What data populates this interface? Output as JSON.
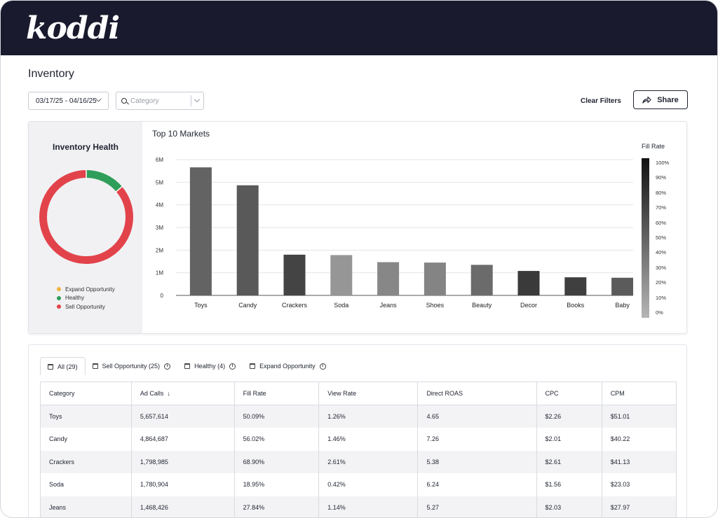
{
  "app": {
    "logo_text": "koddi"
  },
  "page": {
    "title": "Inventory"
  },
  "filters": {
    "date_range": "03/17/25 - 04/16/25",
    "category_placeholder": "Category",
    "clear_filters": "Clear Filters",
    "share": "Share"
  },
  "health": {
    "title": "Inventory Health",
    "legend": [
      {
        "label": "Expand Opportunity",
        "color": "#efb23f"
      },
      {
        "label": "Healthy",
        "color": "#2f9e5a"
      },
      {
        "label": "Sell Opportunity",
        "color": "#e2434b"
      }
    ],
    "segments": [
      {
        "label": "Healthy",
        "fraction": 0.138,
        "color": "#2f9e5a"
      },
      {
        "label": "Sell Opportunity",
        "fraction": 0.862,
        "color": "#e2434b"
      },
      {
        "label": "Expand Opportunity",
        "fraction": 0.0,
        "color": "#efb23f"
      }
    ]
  },
  "chart_data": {
    "type": "bar",
    "title": "Top 10 Markets",
    "categories": [
      "Toys",
      "Candy",
      "Crackers",
      "Soda",
      "Jeans",
      "Shoes",
      "Beauty",
      "Decor",
      "Books",
      "Baby"
    ],
    "values": [
      5657614,
      4864687,
      1798985,
      1780904,
      1468426,
      1450000,
      1350000,
      1080000,
      800000,
      780000
    ],
    "fill_rate": [
      50.09,
      56.02,
      68.9,
      18.95,
      27.84,
      30.0,
      45.0,
      75.0,
      72.0,
      55.0
    ],
    "y_ticks": [
      "0",
      "1M",
      "2M",
      "3M",
      "4M",
      "5M",
      "6M"
    ],
    "ylim": [
      0,
      6000000
    ],
    "color_scale": {
      "title": "Fill Rate",
      "ticks": [
        "100%",
        "90%",
        "80%",
        "70%",
        "60%",
        "50%",
        "40%",
        "30%",
        "20%",
        "10%",
        "0%"
      ]
    }
  },
  "tabs": [
    {
      "label": "All (29)",
      "info": false,
      "active": true
    },
    {
      "label": "Sell Opportunity (25)",
      "info": true,
      "active": false
    },
    {
      "label": "Healthy (4)",
      "info": true,
      "active": false
    },
    {
      "label": "Expand Opportunity",
      "info": true,
      "active": false
    }
  ],
  "table": {
    "columns": [
      "Category",
      "Ad Calls",
      "Fill Rate",
      "View Rate",
      "Direct ROAS",
      "CPC",
      "CPM"
    ],
    "sort_column": "Ad Calls",
    "rows": [
      [
        "Toys",
        "5,657,614",
        "50.09%",
        "1.26%",
        "4.65",
        "$2.26",
        "$51.01"
      ],
      [
        "Candy",
        "4,864,687",
        "56.02%",
        "1.46%",
        "7.26",
        "$2.01",
        "$40.22"
      ],
      [
        "Crackers",
        "1,798,985",
        "68.90%",
        "2.61%",
        "5.38",
        "$2.61",
        "$41.13"
      ],
      [
        "Soda",
        "1,780,904",
        "18.95%",
        "0.42%",
        "6.24",
        "$1.56",
        "$23.03"
      ],
      [
        "Jeans",
        "1,468,426",
        "27.84%",
        "1.14%",
        "5.27",
        "$2.03",
        "$27.97"
      ]
    ]
  }
}
